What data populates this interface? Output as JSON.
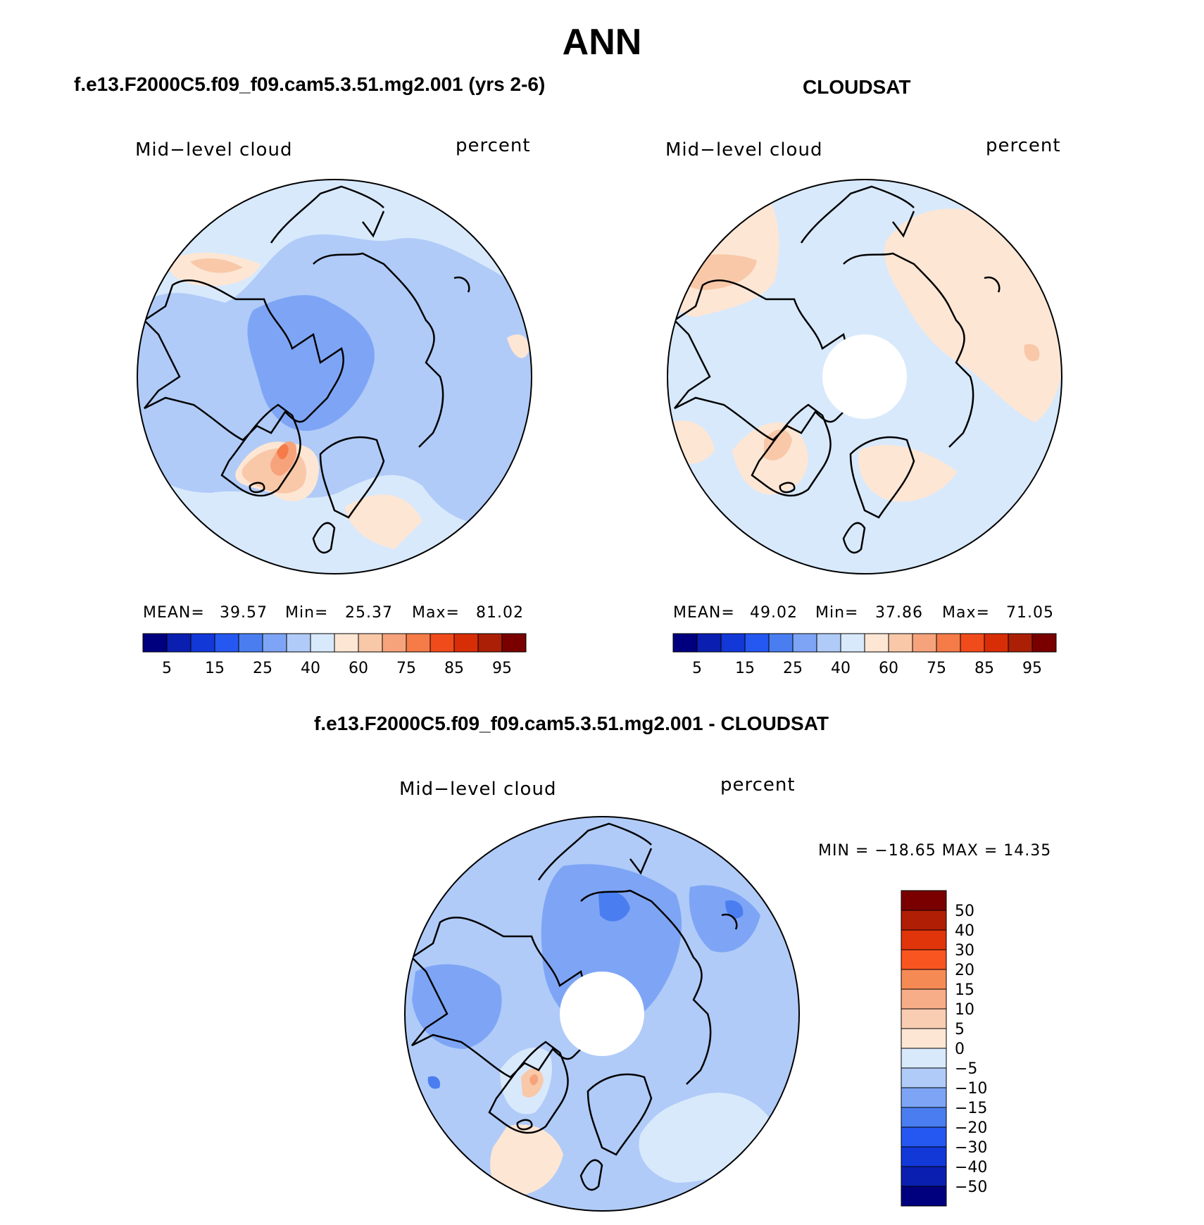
{
  "page_title": "ANN",
  "panels": [
    {
      "title": "f.e13.F2000C5.f09_f09.cam5.3.51.mg2.001 (yrs 2-6)",
      "variable": "Mid−level cloud",
      "units": "percent",
      "stats": {
        "mean_label": "MEAN=",
        "mean": "39.57",
        "min_label": "Min=",
        "min": "25.37",
        "max_label": "Max=",
        "max": "81.02"
      }
    },
    {
      "title": "CLOUDSAT",
      "variable": "Mid−level cloud",
      "units": "percent",
      "stats": {
        "mean_label": "MEAN=",
        "mean": "49.02",
        "min_label": "Min=",
        "min": "37.86",
        "max_label": "Max=",
        "max": "71.05"
      }
    },
    {
      "title": "f.e13.F2000C5.f09_f09.cam5.3.51.mg2.001 - CLOUDSAT",
      "variable": "Mid−level cloud",
      "units": "percent",
      "stats_text": "MIN = −18.65 MAX =   14.35"
    }
  ],
  "chart_data": [
    {
      "type": "heatmap",
      "projection": "north-polar-stereographic",
      "title": "f.e13.F2000C5.f09_f09.cam5.3.51.mg2.001 (yrs 2-6)",
      "field": "Mid-level cloud",
      "units": "percent",
      "mean": 39.57,
      "min": 25.37,
      "max": 81.02,
      "colorbar": {
        "orientation": "horizontal",
        "tick_labels": [
          "5",
          "15",
          "25",
          "40",
          "60",
          "75",
          "85",
          "95"
        ],
        "colors": [
          "#00007f",
          "#0a1fb0",
          "#1238d8",
          "#2558f0",
          "#4a7ef0",
          "#7ea5f5",
          "#b0cbf8",
          "#d8e9fc",
          "#fde6d4",
          "#f8c8a8",
          "#f6a37c",
          "#f57b48",
          "#f04b1a",
          "#d82e08",
          "#aa1f05",
          "#7a0000"
        ]
      }
    },
    {
      "type": "heatmap",
      "projection": "north-polar-stereographic",
      "title": "CLOUDSAT",
      "field": "Mid-level cloud",
      "units": "percent",
      "mean": 49.02,
      "min": 37.86,
      "max": 71.05,
      "colorbar": {
        "orientation": "horizontal",
        "tick_labels": [
          "5",
          "15",
          "25",
          "40",
          "60",
          "75",
          "85",
          "95"
        ],
        "colors": [
          "#00007f",
          "#0a1fb0",
          "#1238d8",
          "#2558f0",
          "#4a7ef0",
          "#7ea5f5",
          "#b0cbf8",
          "#d8e9fc",
          "#fde6d4",
          "#f8c8a8",
          "#f6a37c",
          "#f57b48",
          "#f04b1a",
          "#d82e08",
          "#aa1f05",
          "#7a0000"
        ]
      }
    },
    {
      "type": "heatmap",
      "projection": "north-polar-stereographic",
      "title": "f.e13.F2000C5.f09_f09.cam5.3.51.mg2.001 - CLOUDSAT",
      "field": "Mid-level cloud",
      "units": "percent",
      "min": -18.65,
      "max": 14.35,
      "colorbar": {
        "orientation": "vertical",
        "tick_labels": [
          "50",
          "40",
          "30",
          "20",
          "15",
          "10",
          "5",
          "0",
          "−5",
          "−10",
          "−15",
          "−20",
          "−30",
          "−40",
          "−50"
        ],
        "colors": [
          "#7a0000",
          "#b01e05",
          "#e0340a",
          "#f85520",
          "#f68a55",
          "#f6ad88",
          "#f9cdb2",
          "#fde6d4",
          "#d8e9fc",
          "#b0cbf8",
          "#7ea5f5",
          "#4a7ef0",
          "#2558f0",
          "#1238d8",
          "#0a1fb0",
          "#00007f"
        ]
      }
    }
  ]
}
